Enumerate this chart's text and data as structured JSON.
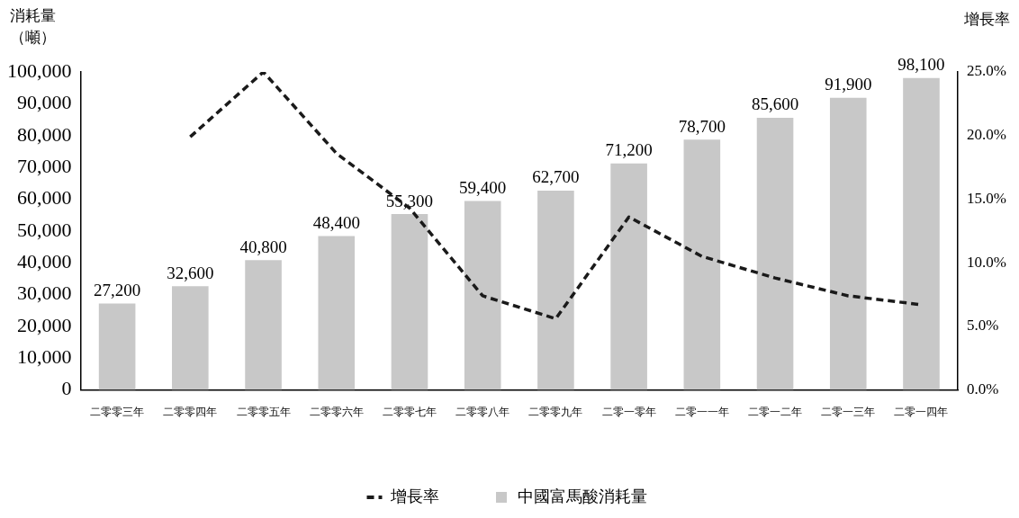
{
  "chart_data": {
    "type": "bar",
    "ylabel": "消耗量（噸）",
    "y2label": "增長率",
    "categories": [
      "二零零三年",
      "二零零四年",
      "二零零五年",
      "二零零六年",
      "二零零七年",
      "二零零八年",
      "二零零九年",
      "二零一零年",
      "二零一一年",
      "二零一二年",
      "二零一三年",
      "二零一四年"
    ],
    "series": [
      {
        "name": "增長率",
        "type": "line",
        "axis": "y2",
        "color": "#1a1a1a",
        "line_style": "dashed",
        "marker": "none",
        "values": [
          null,
          19.9,
          25.0,
          18.6,
          14.3,
          7.4,
          5.6,
          13.6,
          10.5,
          8.8,
          7.4,
          6.7
        ]
      },
      {
        "name": "中國富馬酸消耗量",
        "color": "#c8c8c8",
        "values": [
          27200,
          32600,
          40800,
          48400,
          55300,
          59400,
          62700,
          71200,
          78700,
          85600,
          91900,
          98100
        ],
        "value_labels": [
          "27,200",
          "32,600",
          "40,800",
          "48,400",
          "55,300",
          "59,400",
          "62,700",
          "71,200",
          "78,700",
          "85,600",
          "91,900",
          "98,100"
        ]
      }
    ],
    "ylim": [
      0,
      100000
    ],
    "yticks": [
      0,
      {
        "value": 10000,
        "label": "10,000"
      },
      {
        "value": 20000,
        "label": "20,000"
      },
      {
        "value": 30000,
        "label": "30,000"
      },
      {
        "value": 40000,
        "label": "40,000"
      },
      {
        "value": 50000,
        "label": "50,000"
      },
      {
        "value": 60000,
        "label": "60,000"
      },
      {
        "value": 70000,
        "label": "70,000"
      },
      {
        "value": 80000,
        "label": "80,000"
      },
      {
        "value": 90000,
        "label": "90,000"
      },
      {
        "value": 100000,
        "label": "100,000"
      }
    ],
    "y2lim": [
      0,
      25
    ],
    "y2ticks": [
      {
        "value": 0,
        "label": "0.0%"
      },
      {
        "value": 5,
        "label": "5.0%"
      },
      {
        "value": 10,
        "label": "10.0%"
      },
      {
        "value": 15,
        "label": "15.0%"
      },
      {
        "value": 20,
        "label": "20.0%"
      },
      {
        "value": 25,
        "label": "25.0%"
      }
    ],
    "grid": false,
    "legend": "bottom"
  }
}
